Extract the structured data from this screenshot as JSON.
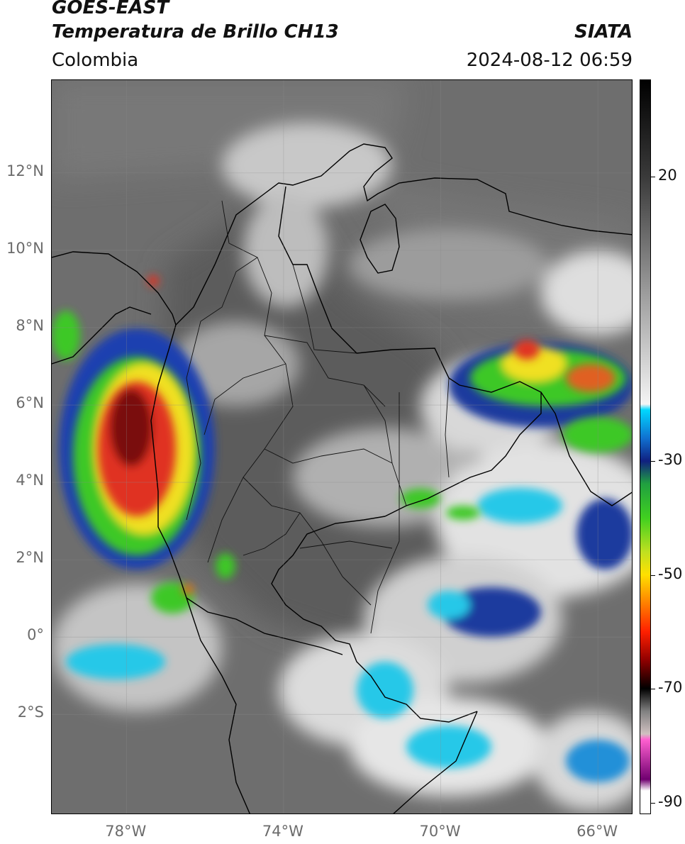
{
  "header": {
    "title_line1": "GOES-EAST",
    "title_line2": "Temperatura de Brillo CH13",
    "region": "Colombia",
    "agency": "SIATA",
    "datetime": "2024-08-12 06:59"
  },
  "map": {
    "lon_range": [
      -79.9,
      -65.1
    ],
    "lat_range": [
      -4.6,
      14.4
    ],
    "lat_ticks": [
      {
        "value": 12,
        "label": "12°N"
      },
      {
        "value": 10,
        "label": "10°N"
      },
      {
        "value": 8,
        "label": "8°N"
      },
      {
        "value": 6,
        "label": "6°N"
      },
      {
        "value": 4,
        "label": "4°N"
      },
      {
        "value": 2,
        "label": "2°N"
      },
      {
        "value": 0,
        "label": "0°"
      },
      {
        "value": -2,
        "label": "2°S"
      }
    ],
    "lon_ticks": [
      {
        "value": -78,
        "label": "78°W"
      },
      {
        "value": -74,
        "label": "74°W"
      },
      {
        "value": -70,
        "label": "70°W"
      },
      {
        "value": -66,
        "label": "66°W"
      }
    ],
    "grid": true,
    "background_color": "#6e6e6e"
  },
  "colorbar": {
    "ticks": [
      {
        "value": 20,
        "label": "20"
      },
      {
        "value": -30,
        "label": "-30"
      },
      {
        "value": -50,
        "label": "-50"
      },
      {
        "value": -70,
        "label": "-70"
      },
      {
        "value": -90,
        "label": "-90"
      }
    ],
    "range": [
      -92,
      37
    ]
  }
}
